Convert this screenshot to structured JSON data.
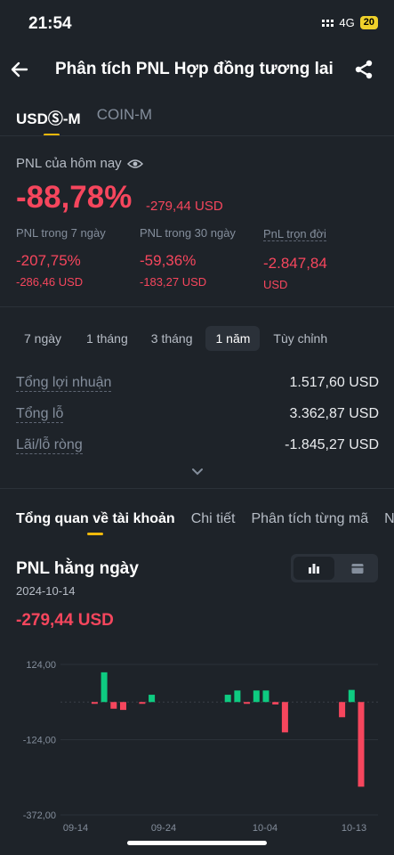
{
  "status": {
    "time": "21:54",
    "network": "4G",
    "battery": "20"
  },
  "header": {
    "title": "Phân tích PNL Hợp đồng tương lai"
  },
  "top_tabs": [
    {
      "label": "USDⓈ-M"
    },
    {
      "label": "COIN-M"
    }
  ],
  "today": {
    "label": "PNL của hôm nay",
    "percent": "-88,78%",
    "amount": "-279,44 USD"
  },
  "stats": [
    {
      "label": "PNL trong 7 ngày",
      "percent": "-207,75%",
      "amount": "-286,46 USD"
    },
    {
      "label": "PNL trong 30 ngày",
      "percent": "-59,36%",
      "amount": "-183,27 USD"
    },
    {
      "label": "PnL trọn đời",
      "percent": "-2.847,84",
      "amount": "USD"
    }
  ],
  "periods": [
    "7 ngày",
    "1 tháng",
    "3 tháng",
    "1 năm",
    "Tùy chỉnh"
  ],
  "summary": [
    {
      "label": "Tổng lợi nhuận",
      "value": "1.517,60 USD"
    },
    {
      "label": "Tổng lỗ",
      "value": "3.362,87 USD"
    },
    {
      "label": "Lãi/lỗ ròng",
      "value": "-1.845,27 USD"
    }
  ],
  "mid_tabs": [
    "Tổng quan về tài khoản",
    "Chi tiết",
    "Phân tích từng mã",
    "N"
  ],
  "daily": {
    "title": "PNL hằng ngày",
    "date": "2024-10-14",
    "amount": "-279,44 USD"
  },
  "colors": {
    "red": "#f6465d",
    "green": "#0ecb81",
    "accent": "#f0b90b",
    "bg": "#1e2329"
  },
  "chart_data": {
    "type": "bar",
    "title": "PNL hằng ngày",
    "x_tick_labels": [
      "09-14",
      "09-24",
      "10-04",
      "10-13"
    ],
    "y_tick_labels": [
      "124,00",
      "-124,00",
      "-372,00"
    ],
    "ylim": [
      -372,
      124
    ],
    "grid": true,
    "x_start": "2024-09-14",
    "bars": [
      {
        "date": "2024-09-16",
        "value": -3
      },
      {
        "date": "2024-09-17",
        "value": 98
      },
      {
        "date": "2024-09-18",
        "value": -22
      },
      {
        "date": "2024-09-19",
        "value": -26
      },
      {
        "date": "2024-09-21",
        "value": -5
      },
      {
        "date": "2024-09-22",
        "value": 24
      },
      {
        "date": "2024-09-30",
        "value": 24
      },
      {
        "date": "2024-10-01",
        "value": 38
      },
      {
        "date": "2024-10-02",
        "value": -5
      },
      {
        "date": "2024-10-03",
        "value": 38
      },
      {
        "date": "2024-10-04",
        "value": 38
      },
      {
        "date": "2024-10-05",
        "value": -8
      },
      {
        "date": "2024-10-06",
        "value": -100
      },
      {
        "date": "2024-10-12",
        "value": -50
      },
      {
        "date": "2024-10-13",
        "value": 40
      },
      {
        "date": "2024-10-14",
        "value": -279
      }
    ]
  }
}
